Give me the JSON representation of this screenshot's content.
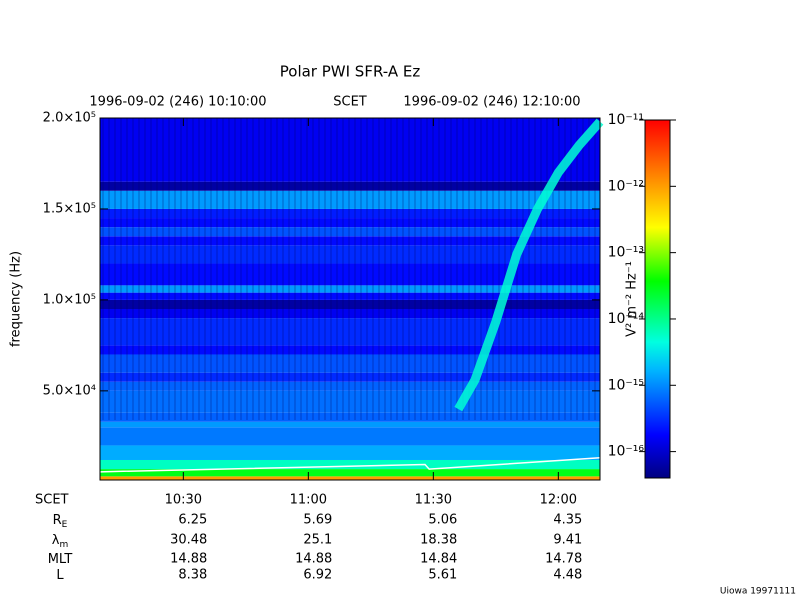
{
  "chart_data": {
    "type": "spectrogram",
    "title": "Polar PWI SFR-A Ez",
    "start_label": "1996-09-02 (246) 10:10:00",
    "center_label": "SCET",
    "end_label": "1996-09-02 (246) 12:10:00",
    "y_label": "frequency (Hz)",
    "ylim": [
      1000,
      200000
    ],
    "yticks": [
      {
        "value": 50000,
        "label": "5.0×10⁴"
      },
      {
        "value": 100000,
        "label": "1.0×10⁵"
      },
      {
        "value": 150000,
        "label": "1.5×10⁵"
      },
      {
        "value": 200000,
        "label": "2.0×10⁵"
      }
    ],
    "xticks": [
      "10:30",
      "11:00",
      "11:30",
      "12:00"
    ],
    "freq_edges": [
      1000,
      3000,
      7000,
      12000,
      20000,
      30000,
      33000,
      38000,
      50000,
      55000,
      60000,
      70000,
      75000,
      90000,
      95000,
      100000,
      104000,
      108000,
      120000,
      130000,
      135000,
      140000,
      145000,
      150000,
      160000,
      165000,
      200000
    ],
    "levels": [
      1e-12,
      3e-14,
      6e-15,
      1.5e-15,
      8e-16,
      1.2e-15,
      6e-16,
      7e-16,
      6e-16,
      3e-16,
      5e-16,
      2e-16,
      3e-16,
      1.5e-16,
      6e-17,
      2e-16,
      1.2e-15,
      2e-16,
      3e-16,
      2e-16,
      5e-16,
      2e-16,
      2.5e-16,
      1.2e-15,
      6e-17,
      1.5e-16
    ],
    "emission": {
      "x": [
        "11:36",
        "11:40",
        "11:45",
        "11:50",
        "11:55",
        "12:00",
        "12:05",
        "12:10"
      ],
      "values": [
        40000,
        56000,
        88000,
        125000,
        150000,
        170000,
        185000,
        198000
      ],
      "level": 5e-15
    },
    "white_line": {
      "x": [
        "10:10",
        "11:28",
        "11:29",
        "12:10"
      ],
      "values": [
        5500,
        9500,
        7000,
        13200
      ]
    },
    "log_color": true,
    "zlim": [
      4e-17,
      1e-11
    ],
    "zticks": [
      {
        "value": 1e-11,
        "label": "10⁻¹¹"
      },
      {
        "value": 1e-12,
        "label": "10⁻¹²"
      },
      {
        "value": 1e-13,
        "label": "10⁻¹³"
      },
      {
        "value": 1e-14,
        "label": "10⁻¹⁴"
      },
      {
        "value": 1e-15,
        "label": "10⁻¹⁵"
      },
      {
        "value": 1e-16,
        "label": "10⁻¹⁶"
      }
    ],
    "colorbar_label": "V² m⁻² Hz⁻¹",
    "ephemeris_label": "SCET",
    "ephemeris": [
      {
        "label": "R",
        "sub": "E",
        "values": [
          6.25,
          5.69,
          5.06,
          4.35
        ]
      },
      {
        "label": "λ",
        "sub": "m",
        "values": [
          30.48,
          25.1,
          18.38,
          9.41
        ]
      },
      {
        "label": "MLT",
        "values": [
          14.88,
          14.88,
          14.84,
          14.78
        ]
      },
      {
        "label": "L",
        "values": [
          8.38,
          6.92,
          5.61,
          4.48
        ]
      }
    ],
    "footer": "Uiowa 19971111"
  }
}
